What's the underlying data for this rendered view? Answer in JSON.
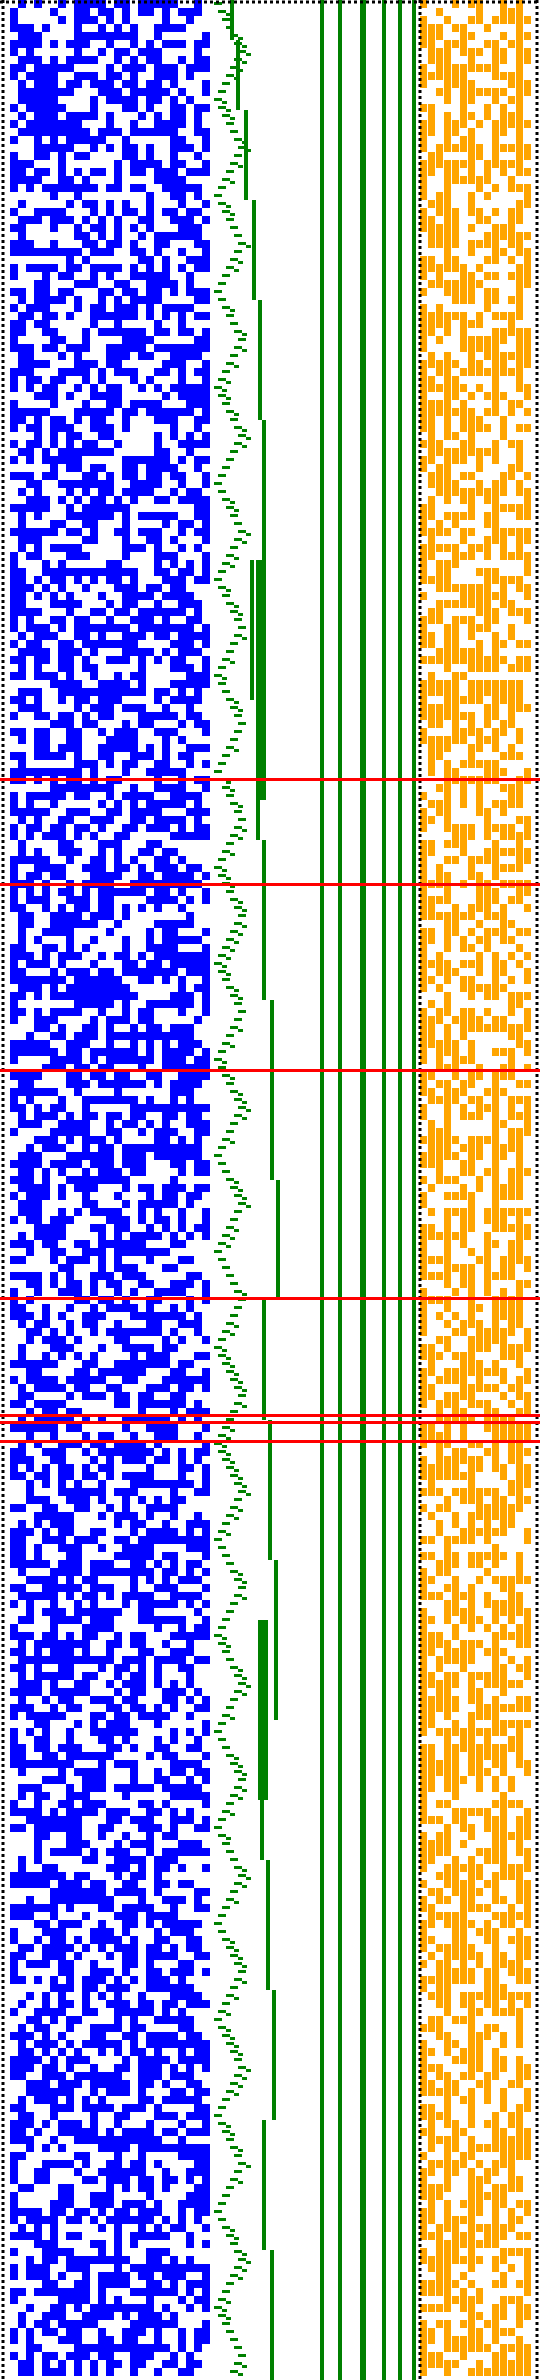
{
  "colors": {
    "background": "#ffffff",
    "left_pattern": "#0000ff",
    "middle_steps": "#008000",
    "right_pattern": "#ffa500",
    "separator_dots": "#000000",
    "highlight_lines": "#ff0000"
  },
  "panels": {
    "left": {
      "name": "blue-noise-panel",
      "density": 0.55
    },
    "middle": {
      "name": "green-step-panel",
      "full_lines": 6
    },
    "right": {
      "name": "orange-noise-panel",
      "density": 0.58
    }
  },
  "highlight_rows_fraction": [
    0.327,
    0.371,
    0.449,
    0.545,
    0.594,
    0.597,
    0.605
  ]
}
